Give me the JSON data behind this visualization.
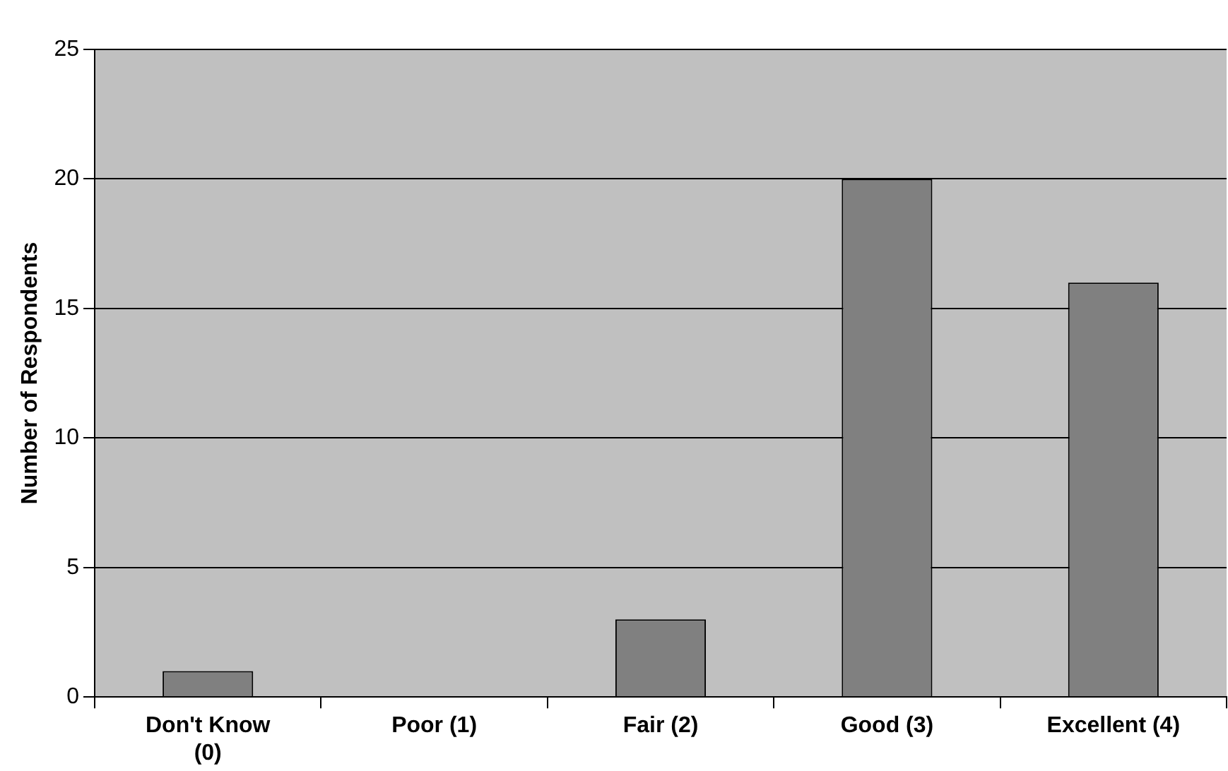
{
  "chart_data": {
    "type": "bar",
    "ylabel": "Number of Respondents",
    "categories": [
      "Don't Know (0)",
      "Poor (1)",
      "Fair (2)",
      "Good (3)",
      "Excellent (4)"
    ],
    "values": [
      1,
      0,
      3,
      20,
      16
    ],
    "color": "#808080",
    "ylim": [
      0,
      25
    ],
    "yticks": [
      0,
      5,
      10,
      15,
      20,
      25
    ],
    "grid": "y",
    "legend": false
  }
}
